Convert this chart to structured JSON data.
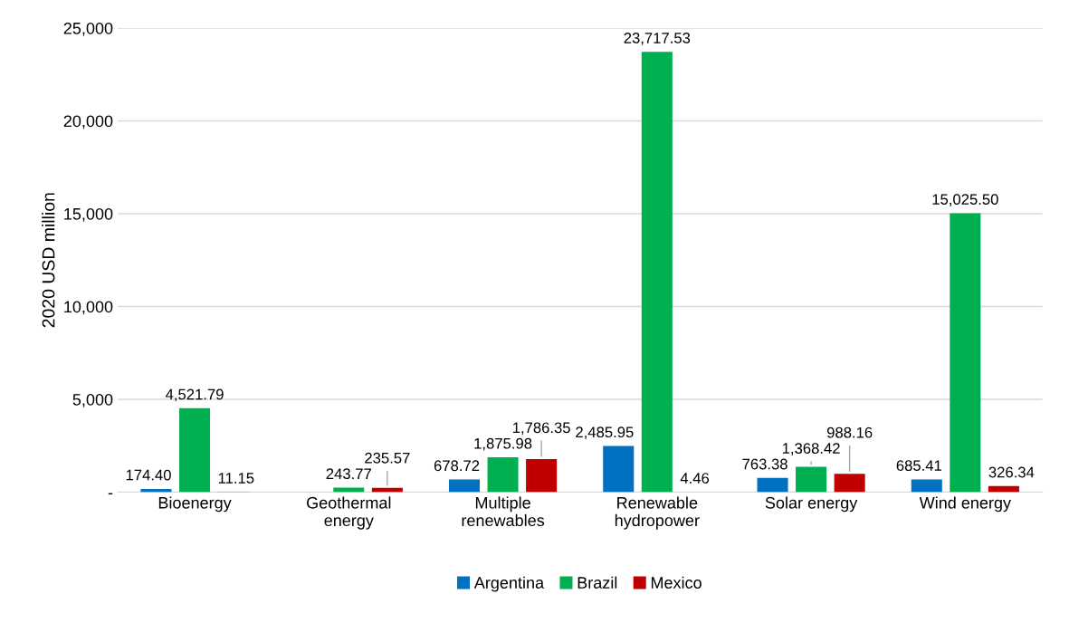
{
  "chart_data": {
    "type": "bar",
    "ylabel": "2020 USD million",
    "categories": [
      "Bioenergy",
      "Geothermal\nenergy",
      "Multiple\nrenewables",
      "Renewable\nhydropower",
      "Solar energy",
      "Wind energy"
    ],
    "series": [
      {
        "name": "Argentina",
        "color": "#0070c0",
        "values": [
          174.4,
          null,
          678.72,
          2485.95,
          763.38,
          685.41
        ],
        "value_labels": [
          "174.40",
          null,
          "678.72",
          "2,485.95",
          "763.38",
          "685.41"
        ]
      },
      {
        "name": "Brazil",
        "color": "#00b050",
        "values": [
          4521.79,
          243.77,
          1875.98,
          23717.53,
          1368.42,
          15025.5
        ],
        "value_labels": [
          "4,521.79",
          "243.77",
          "1,875.98",
          "23,717.53",
          "1,368.42",
          "15,025.50"
        ]
      },
      {
        "name": "Mexico",
        "color": "#c00000",
        "values": [
          11.15,
          235.57,
          1786.35,
          4.46,
          988.16,
          326.34
        ],
        "value_labels": [
          "11.15",
          "235.57",
          "1,786.35",
          "4.46",
          "988.16",
          "326.34"
        ]
      }
    ],
    "ylim": [
      0,
      25000
    ],
    "yticks": [
      {
        "value": 0,
        "label": "-"
      },
      {
        "value": 5000,
        "label": "5,000"
      },
      {
        "value": 10000,
        "label": "10,000"
      },
      {
        "value": 15000,
        "label": "15,000"
      },
      {
        "value": 20000,
        "label": "20,000"
      },
      {
        "value": 25000,
        "label": "25,000"
      }
    ],
    "grid": "y",
    "legend": "bottom"
  }
}
